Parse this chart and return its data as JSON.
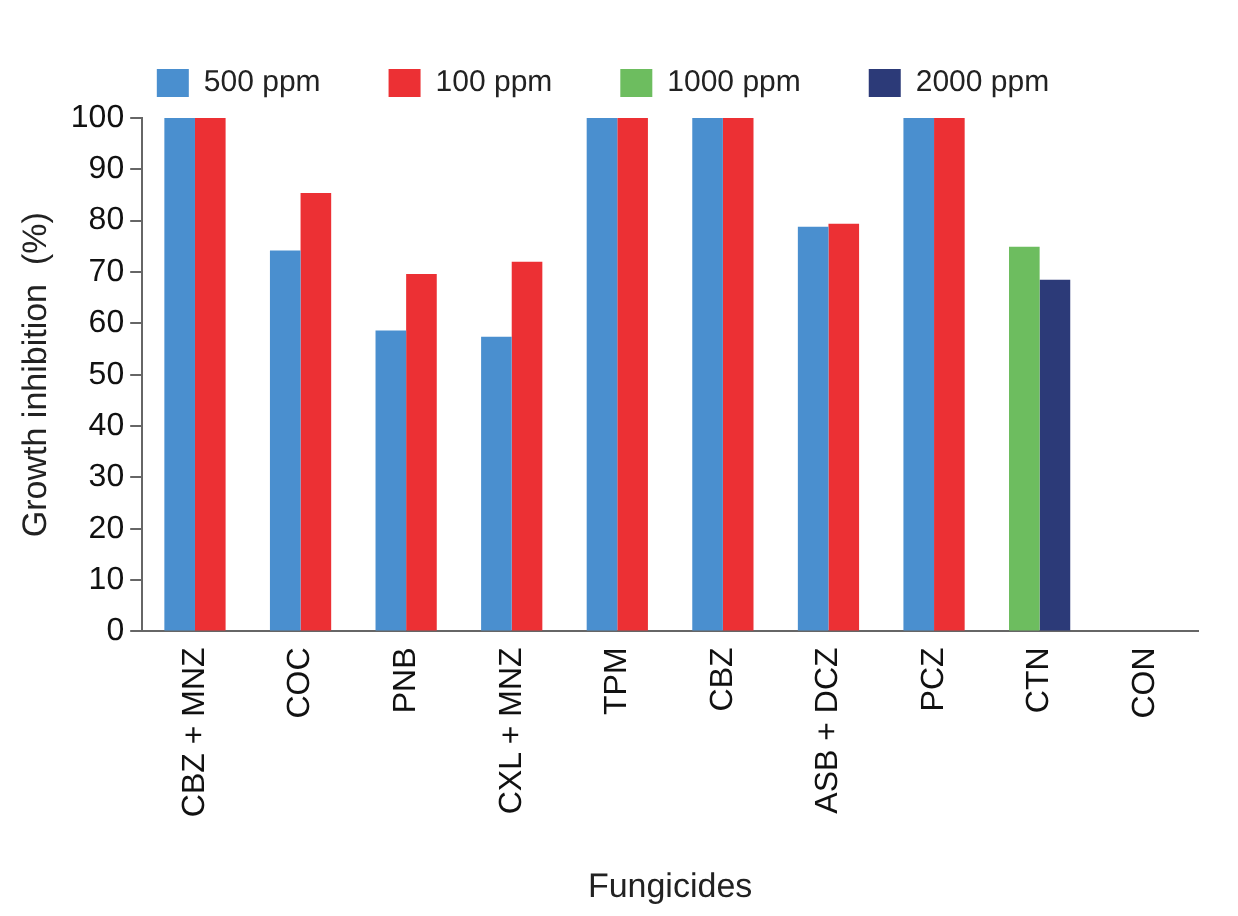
{
  "chart_data": {
    "type": "bar",
    "xlabel": "Fungicides",
    "ylabel": "Growth inhibition  (%)",
    "categories": [
      "CBZ + MNZ",
      "COC",
      "PNB",
      "CXL + MNZ",
      "TPM",
      "CBZ",
      "ASB + DCZ",
      "PCZ",
      "CTN",
      "CON"
    ],
    "series": [
      {
        "name": "500 ppm",
        "color": "#4a8fcf",
        "values": [
          100,
          74.2,
          58.6,
          57.4,
          100,
          100,
          78.8,
          100,
          null,
          null
        ]
      },
      {
        "name": "100 ppm",
        "color": "#ec3034",
        "values": [
          100,
          85.4,
          69.6,
          72,
          100,
          100,
          79.4,
          100,
          null,
          null
        ]
      },
      {
        "name": "1000 ppm",
        "color": "#6dbd5f",
        "values": [
          null,
          null,
          null,
          null,
          null,
          null,
          null,
          null,
          74.9,
          null
        ]
      },
      {
        "name": "2000 ppm",
        "color": "#2c3a78",
        "values": [
          null,
          null,
          null,
          null,
          null,
          null,
          null,
          null,
          68.5,
          null
        ]
      }
    ],
    "ylim": [
      0,
      100
    ],
    "yticks": [
      0,
      10,
      20,
      30,
      40,
      50,
      60,
      70,
      80,
      90,
      100
    ],
    "grid": false,
    "legend": "top"
  }
}
